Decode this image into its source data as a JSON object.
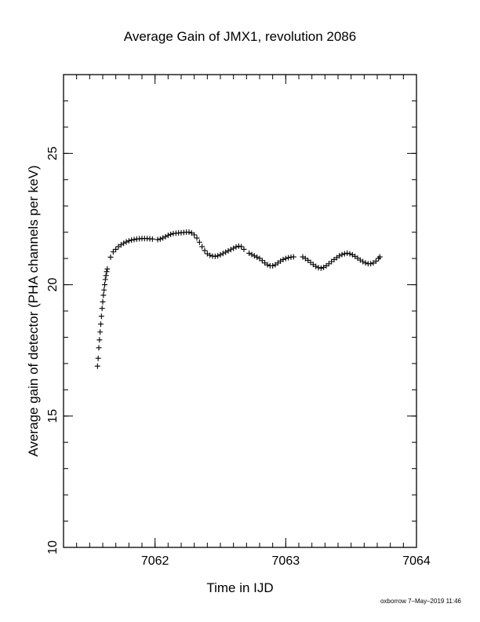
{
  "chart_data": {
    "type": "scatter",
    "title": "Average Gain of JMX1, revolution 2086",
    "xlabel": "Time in IJD",
    "ylabel": "Average gain of detector (PHA channels per keV)",
    "xlim": [
      7061.3,
      7064.0
    ],
    "ylim": [
      10,
      28
    ],
    "x_ticks": [
      7062,
      7063,
      7064
    ],
    "x_tick_labels": [
      "7062",
      "7063",
      "7064"
    ],
    "y_ticks": [
      10,
      15,
      20,
      25
    ],
    "y_tick_labels": [
      "10",
      "15",
      "20",
      "25"
    ],
    "x_minor_step": 0.1,
    "y_minor_step": 1,
    "marker": "plus",
    "grid": false,
    "series": [
      {
        "color": "#000000",
        "points": [
          [
            7061.56,
            16.9
          ],
          [
            7061.565,
            17.2
          ],
          [
            7061.57,
            17.6
          ],
          [
            7061.575,
            17.9
          ],
          [
            7061.58,
            18.2
          ],
          [
            7061.585,
            18.5
          ],
          [
            7061.59,
            18.8
          ],
          [
            7061.595,
            19.1
          ],
          [
            7061.6,
            19.35
          ],
          [
            7061.605,
            19.6
          ],
          [
            7061.61,
            19.8
          ],
          [
            7061.615,
            20.0
          ],
          [
            7061.62,
            20.2
          ],
          [
            7061.625,
            20.35
          ],
          [
            7061.63,
            20.5
          ],
          [
            7061.635,
            20.6
          ],
          [
            7061.66,
            21.05
          ],
          [
            7061.68,
            21.25
          ],
          [
            7061.7,
            21.35
          ],
          [
            7061.72,
            21.45
          ],
          [
            7061.74,
            21.52
          ],
          [
            7061.76,
            21.58
          ],
          [
            7061.78,
            21.63
          ],
          [
            7061.8,
            21.67
          ],
          [
            7061.82,
            21.7
          ],
          [
            7061.84,
            21.72
          ],
          [
            7061.86,
            21.74
          ],
          [
            7061.88,
            21.75
          ],
          [
            7061.9,
            21.76
          ],
          [
            7061.92,
            21.76
          ],
          [
            7061.94,
            21.76
          ],
          [
            7061.96,
            21.75
          ],
          [
            7061.98,
            21.74
          ],
          [
            7062.02,
            21.72
          ],
          [
            7062.04,
            21.74
          ],
          [
            7062.06,
            21.78
          ],
          [
            7062.08,
            21.83
          ],
          [
            7062.1,
            21.88
          ],
          [
            7062.12,
            21.92
          ],
          [
            7062.14,
            21.95
          ],
          [
            7062.16,
            21.96
          ],
          [
            7062.18,
            21.97
          ],
          [
            7062.2,
            21.98
          ],
          [
            7062.22,
            21.99
          ],
          [
            7062.24,
            22.0
          ],
          [
            7062.26,
            22.0
          ],
          [
            7062.28,
            21.97
          ],
          [
            7062.3,
            21.9
          ],
          [
            7062.32,
            21.78
          ],
          [
            7062.34,
            21.62
          ],
          [
            7062.36,
            21.45
          ],
          [
            7062.38,
            21.3
          ],
          [
            7062.4,
            21.18
          ],
          [
            7062.42,
            21.12
          ],
          [
            7062.44,
            21.09
          ],
          [
            7062.46,
            21.08
          ],
          [
            7062.48,
            21.1
          ],
          [
            7062.5,
            21.14
          ],
          [
            7062.52,
            21.19
          ],
          [
            7062.54,
            21.24
          ],
          [
            7062.56,
            21.29
          ],
          [
            7062.58,
            21.34
          ],
          [
            7062.6,
            21.39
          ],
          [
            7062.62,
            21.44
          ],
          [
            7062.64,
            21.47
          ],
          [
            7062.66,
            21.45
          ],
          [
            7062.68,
            21.35
          ],
          [
            7062.72,
            21.2
          ],
          [
            7062.74,
            21.15
          ],
          [
            7062.76,
            21.1
          ],
          [
            7062.78,
            21.05
          ],
          [
            7062.8,
            21.0
          ],
          [
            7062.82,
            20.92
          ],
          [
            7062.84,
            20.83
          ],
          [
            7062.86,
            20.76
          ],
          [
            7062.88,
            20.72
          ],
          [
            7062.9,
            20.72
          ],
          [
            7062.92,
            20.76
          ],
          [
            7062.94,
            20.83
          ],
          [
            7062.96,
            20.9
          ],
          [
            7062.98,
            20.96
          ],
          [
            7063.0,
            21.0
          ],
          [
            7063.02,
            21.03
          ],
          [
            7063.04,
            21.05
          ],
          [
            7063.06,
            21.06
          ],
          [
            7063.13,
            21.06
          ],
          [
            7063.15,
            21.0
          ],
          [
            7063.17,
            20.93
          ],
          [
            7063.19,
            20.85
          ],
          [
            7063.21,
            20.77
          ],
          [
            7063.23,
            20.7
          ],
          [
            7063.25,
            20.65
          ],
          [
            7063.27,
            20.63
          ],
          [
            7063.29,
            20.66
          ],
          [
            7063.31,
            20.72
          ],
          [
            7063.33,
            20.8
          ],
          [
            7063.35,
            20.88
          ],
          [
            7063.37,
            20.96
          ],
          [
            7063.39,
            21.03
          ],
          [
            7063.41,
            21.1
          ],
          [
            7063.43,
            21.15
          ],
          [
            7063.45,
            21.18
          ],
          [
            7063.47,
            21.2
          ],
          [
            7063.49,
            21.18
          ],
          [
            7063.51,
            21.14
          ],
          [
            7063.53,
            21.08
          ],
          [
            7063.55,
            21.01
          ],
          [
            7063.57,
            20.94
          ],
          [
            7063.59,
            20.88
          ],
          [
            7063.61,
            20.83
          ],
          [
            7063.63,
            20.8
          ],
          [
            7063.65,
            20.8
          ],
          [
            7063.67,
            20.83
          ],
          [
            7063.69,
            20.9
          ],
          [
            7063.71,
            21.0
          ],
          [
            7063.72,
            21.06
          ]
        ]
      }
    ]
  },
  "footer": {
    "credit": "oxborrow  7–May–2019 11:46"
  }
}
